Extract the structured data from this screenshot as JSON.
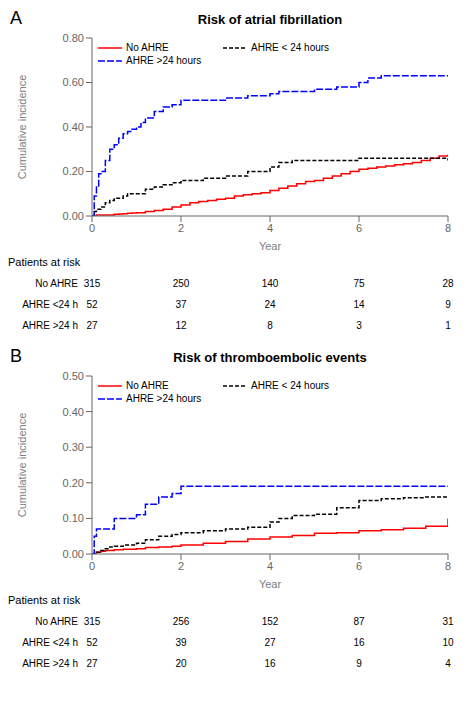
{
  "chart_data": [
    {
      "type": "line",
      "title": "Risk of atrial fibrillation",
      "annotations": [
        "A"
      ],
      "x_label": "Year",
      "y_label": "Cumulative incidence",
      "xlim": [
        0,
        8
      ],
      "xticks": [
        0,
        2,
        4,
        6,
        8
      ],
      "ylim": [
        0,
        0.8
      ],
      "yticks": [
        {
          "value": 0.0,
          "label": "0.00"
        },
        {
          "value": 0.2,
          "label": "0.20"
        },
        {
          "value": 0.4,
          "label": "0.40"
        },
        {
          "value": 0.6,
          "label": "0.60"
        },
        {
          "value": 0.8,
          "label": "0.80"
        }
      ],
      "grid": false,
      "legend": "upper left",
      "series": [
        {
          "name": "No AHRE",
          "color": "#FF0000",
          "line_style": "solid",
          "x": [
            0,
            0.05,
            0.1,
            0.2,
            0.3,
            0.4,
            0.5,
            0.6,
            0.7,
            0.8,
            0.9,
            1.0,
            1.2,
            1.4,
            1.6,
            1.8,
            2.0,
            2.2,
            2.4,
            2.6,
            2.8,
            3.0,
            3.2,
            3.4,
            3.6,
            3.8,
            4.0,
            4.2,
            4.4,
            4.6,
            4.8,
            5.0,
            5.2,
            5.4,
            5.6,
            5.8,
            6.0,
            6.2,
            6.4,
            6.6,
            6.8,
            7.0,
            7.2,
            7.4,
            7.6,
            7.8,
            8.0
          ],
          "values": [
            0.0,
            0.0,
            0.005,
            0.005,
            0.005,
            0.005,
            0.008,
            0.009,
            0.01,
            0.012,
            0.013,
            0.015,
            0.02,
            0.025,
            0.03,
            0.04,
            0.05,
            0.06,
            0.065,
            0.07,
            0.075,
            0.08,
            0.09,
            0.095,
            0.1,
            0.105,
            0.115,
            0.125,
            0.135,
            0.145,
            0.155,
            0.16,
            0.17,
            0.18,
            0.19,
            0.2,
            0.21,
            0.215,
            0.22,
            0.225,
            0.23,
            0.235,
            0.24,
            0.25,
            0.26,
            0.27,
            0.275
          ]
        },
        {
          "name": "AHRE < 24 hours",
          "color": "#000000",
          "line_style": "dashed",
          "x": [
            0,
            0.05,
            0.1,
            0.2,
            0.3,
            0.4,
            0.5,
            0.6,
            0.7,
            0.8,
            0.9,
            1.0,
            1.2,
            1.4,
            1.6,
            1.8,
            2.0,
            2.5,
            3.0,
            3.5,
            4.0,
            4.2,
            4.5,
            5.0,
            5.5,
            6.0,
            6.5,
            7.0,
            7.5,
            8.0
          ],
          "values": [
            0.0,
            0.02,
            0.03,
            0.04,
            0.06,
            0.07,
            0.08,
            0.08,
            0.09,
            0.1,
            0.1,
            0.1,
            0.12,
            0.13,
            0.14,
            0.15,
            0.16,
            0.17,
            0.18,
            0.2,
            0.22,
            0.24,
            0.25,
            0.25,
            0.25,
            0.26,
            0.26,
            0.26,
            0.26,
            0.25
          ]
        },
        {
          "name": "AHRE >24 hours",
          "color": "#0000FF",
          "line_style": "long_dashed",
          "x": [
            0,
            0.05,
            0.1,
            0.15,
            0.2,
            0.3,
            0.4,
            0.5,
            0.6,
            0.7,
            0.8,
            0.9,
            1.0,
            1.1,
            1.2,
            1.4,
            1.6,
            1.8,
            2.0,
            2.5,
            3.0,
            3.5,
            4.0,
            4.2,
            4.5,
            5.0,
            5.5,
            6.0,
            6.2,
            6.5,
            7.0,
            7.5,
            8.0
          ],
          "values": [
            0.0,
            0.09,
            0.13,
            0.19,
            0.2,
            0.25,
            0.3,
            0.32,
            0.35,
            0.37,
            0.38,
            0.39,
            0.4,
            0.42,
            0.44,
            0.47,
            0.49,
            0.5,
            0.52,
            0.52,
            0.53,
            0.54,
            0.55,
            0.56,
            0.56,
            0.57,
            0.58,
            0.6,
            0.62,
            0.63,
            0.63,
            0.63,
            0.63
          ]
        }
      ],
      "risk_table": {
        "title": "Patients at risk",
        "time_points": [
          0,
          2,
          4,
          6,
          8
        ],
        "rows": [
          {
            "name": "No AHRE",
            "values": [
              315,
              250,
              140,
              75,
              28
            ]
          },
          {
            "name": "AHRE <24 h",
            "values": [
              52,
              37,
              24,
              14,
              9
            ]
          },
          {
            "name": "AHRE >24 h",
            "values": [
              27,
              12,
              8,
              3,
              1
            ]
          }
        ]
      }
    },
    {
      "type": "line",
      "title": "Risk of thromboembolic events",
      "annotations": [
        "B"
      ],
      "x_label": "Year",
      "y_label": "Cumulative incidence",
      "xlim": [
        0,
        8
      ],
      "xticks": [
        0,
        2,
        4,
        6,
        8
      ],
      "ylim": [
        0,
        0.5
      ],
      "yticks": [
        {
          "value": 0.0,
          "label": "0.00"
        },
        {
          "value": 0.1,
          "label": "0.10"
        },
        {
          "value": 0.2,
          "label": "0.20"
        },
        {
          "value": 0.3,
          "label": "0.30"
        },
        {
          "value": 0.4,
          "label": "0.40"
        },
        {
          "value": 0.5,
          "label": "0.50"
        }
      ],
      "grid": false,
      "legend": "upper left",
      "series": [
        {
          "name": "No AHRE",
          "color": "#FF0000",
          "line_style": "solid",
          "x": [
            0,
            0.05,
            0.1,
            0.2,
            0.3,
            0.5,
            0.7,
            1.0,
            1.2,
            1.5,
            1.8,
            2.0,
            2.5,
            3.0,
            3.5,
            4.0,
            4.5,
            5.0,
            5.5,
            6.0,
            6.5,
            7.0,
            7.5,
            8.0
          ],
          "values": [
            0.0,
            0.0,
            0.005,
            0.008,
            0.01,
            0.012,
            0.013,
            0.015,
            0.018,
            0.02,
            0.022,
            0.025,
            0.03,
            0.035,
            0.042,
            0.048,
            0.052,
            0.058,
            0.06,
            0.065,
            0.068,
            0.072,
            0.078,
            0.1
          ]
        },
        {
          "name": "AHRE < 24 hours",
          "color": "#000000",
          "line_style": "dashed",
          "x": [
            0,
            0.1,
            0.2,
            0.3,
            0.4,
            0.5,
            0.7,
            1.0,
            1.2,
            1.5,
            1.8,
            2.0,
            2.5,
            3.0,
            3.5,
            4.0,
            4.2,
            4.5,
            5.0,
            5.5,
            6.0,
            6.5,
            7.0,
            7.5,
            8.0
          ],
          "values": [
            0.0,
            0.005,
            0.01,
            0.015,
            0.02,
            0.022,
            0.025,
            0.03,
            0.04,
            0.05,
            0.055,
            0.06,
            0.065,
            0.07,
            0.075,
            0.09,
            0.1,
            0.108,
            0.112,
            0.13,
            0.15,
            0.155,
            0.158,
            0.16,
            0.16
          ]
        },
        {
          "name": "AHRE >24 hours",
          "color": "#0000FF",
          "line_style": "long_dashed",
          "x": [
            0,
            0.05,
            0.1,
            0.2,
            0.3,
            0.5,
            0.7,
            1.0,
            1.2,
            1.5,
            1.8,
            2.0,
            2.5,
            3.0,
            3.5,
            4.0,
            4.5,
            5.0,
            5.5,
            6.0,
            6.5,
            7.0,
            7.5,
            8.0
          ],
          "values": [
            0.0,
            0.05,
            0.07,
            0.07,
            0.07,
            0.1,
            0.1,
            0.11,
            0.14,
            0.16,
            0.17,
            0.19,
            0.19,
            0.19,
            0.19,
            0.19,
            0.19,
            0.19,
            0.19,
            0.19,
            0.19,
            0.19,
            0.19,
            0.19
          ]
        }
      ],
      "risk_table": {
        "title": "Patients at risk",
        "time_points": [
          0,
          2,
          4,
          6,
          8
        ],
        "rows": [
          {
            "name": "No AHRE",
            "values": [
              315,
              256,
              152,
              87,
              31
            ]
          },
          {
            "name": "AHRE <24 h",
            "values": [
              52,
              39,
              27,
              16,
              10
            ]
          },
          {
            "name": "AHRE >24 h",
            "values": [
              27,
              20,
              16,
              9,
              4
            ]
          }
        ]
      }
    }
  ]
}
